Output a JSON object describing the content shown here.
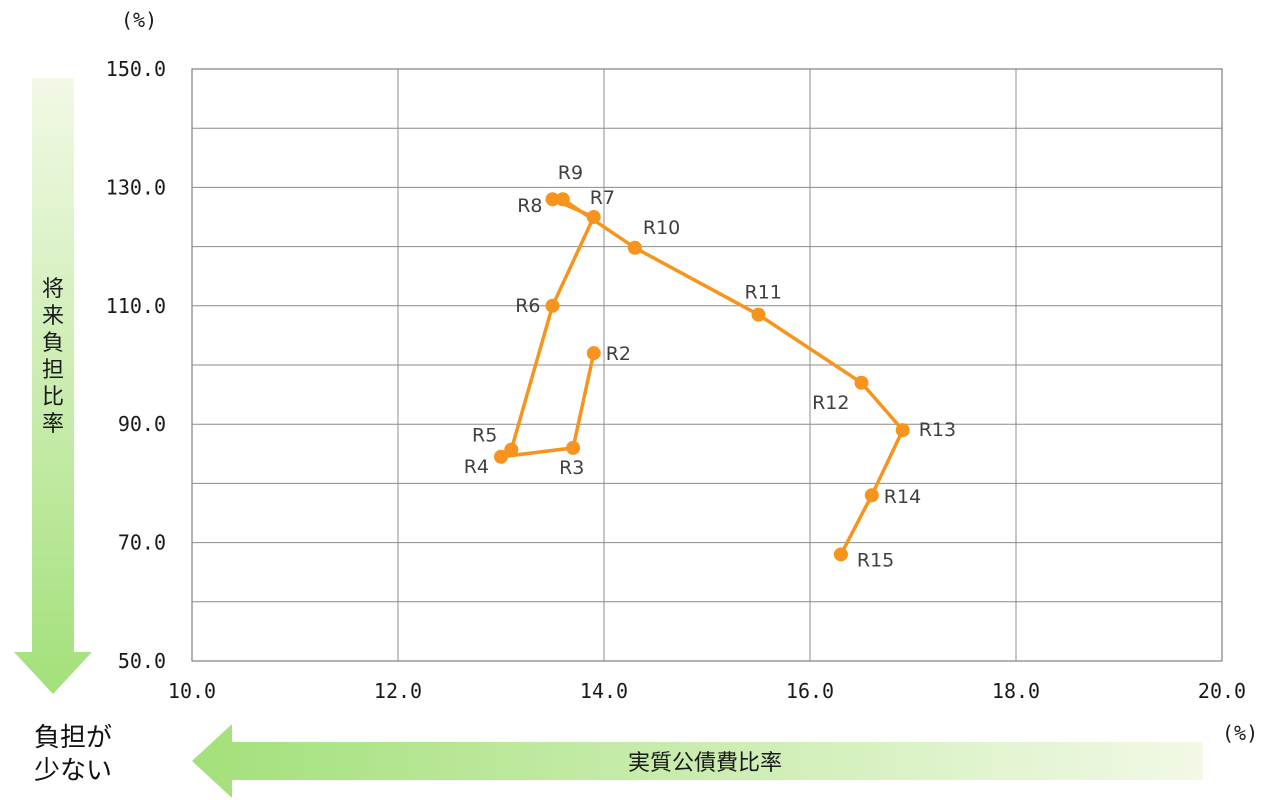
{
  "chart_data": {
    "type": "line",
    "x_unit": "(%)",
    "y_unit": "(%)",
    "xlim": [
      10.0,
      20.0
    ],
    "ylim": [
      50.0,
      150.0
    ],
    "x_ticks": [
      "10.0",
      "12.0",
      "14.0",
      "16.0",
      "18.0",
      "20.0"
    ],
    "y_ticks": [
      "50.0",
      "70.0",
      "90.0",
      "110.0",
      "130.0",
      "150.0"
    ],
    "grid": true,
    "ylabel": "将来負担比率",
    "xlabel": "実質公債費比率",
    "note": "負担が少ない",
    "series": [
      {
        "color": "#f7941d",
        "points": [
          {
            "label": "R2",
            "x": 13.9,
            "y": 102.0
          },
          {
            "label": "R3",
            "x": 13.7,
            "y": 86.0
          },
          {
            "label": "R4",
            "x": 13.0,
            "y": 84.5
          },
          {
            "label": "R5",
            "x": 13.1,
            "y": 85.7
          },
          {
            "label": "R6",
            "x": 13.5,
            "y": 110.0
          },
          {
            "label": "R7",
            "x": 13.9,
            "y": 125.0
          },
          {
            "label": "R8",
            "x": 13.5,
            "y": 128.0
          },
          {
            "label": "R9",
            "x": 13.6,
            "y": 128.0
          },
          {
            "label": "R10",
            "x": 14.3,
            "y": 119.8
          },
          {
            "label": "R11",
            "x": 15.5,
            "y": 108.5
          },
          {
            "label": "R12",
            "x": 16.5,
            "y": 97.0
          },
          {
            "label": "R13",
            "x": 16.9,
            "y": 89.0
          },
          {
            "label": "R14",
            "x": 16.6,
            "y": 78.0
          },
          {
            "label": "R15",
            "x": 16.3,
            "y": 68.0
          }
        ]
      }
    ],
    "arrow_colors": {
      "start": "#f2f9e6",
      "end": "#a3e07a"
    }
  }
}
